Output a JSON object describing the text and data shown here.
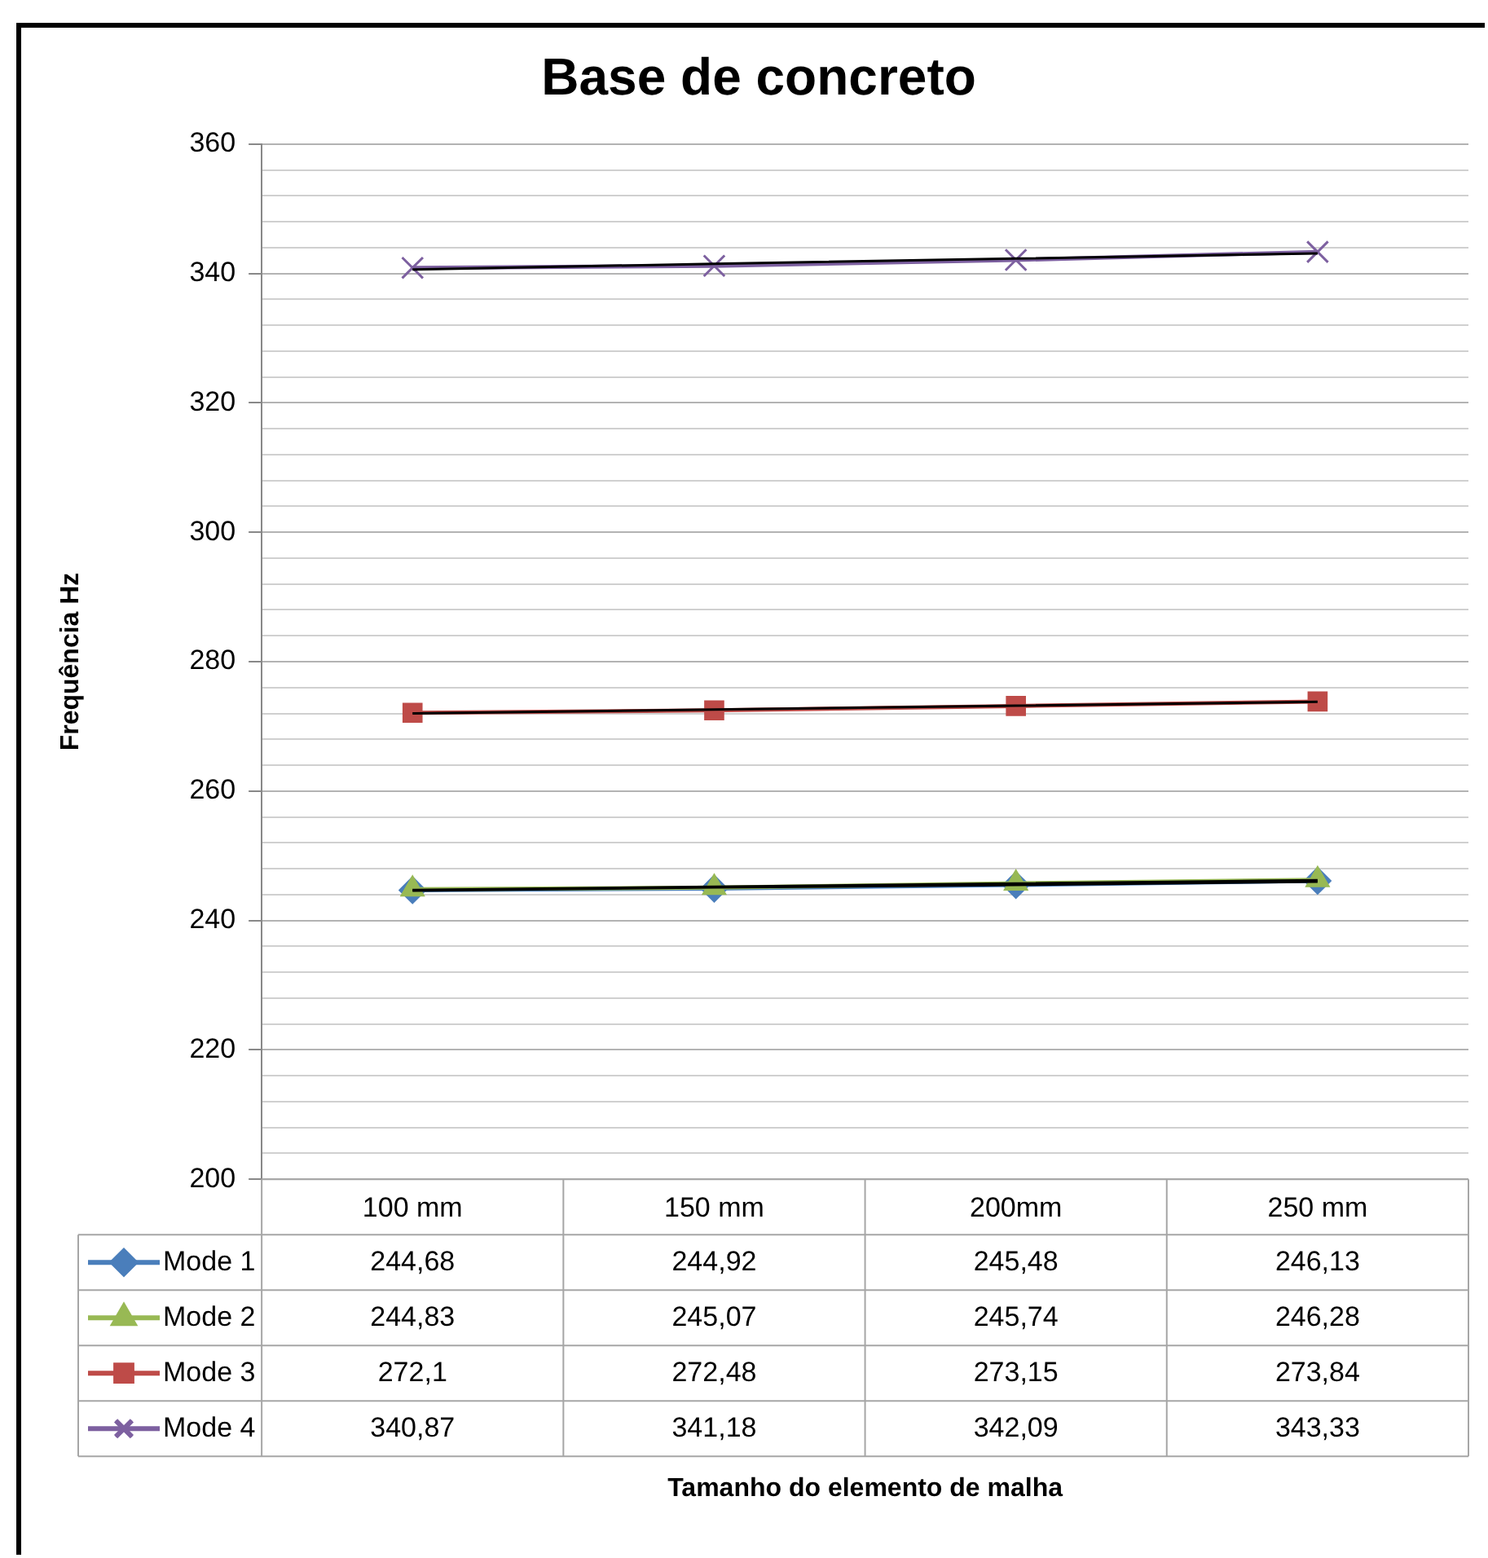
{
  "chart_data": {
    "type": "line",
    "title": "Base de concreto",
    "annotations": [
      "Tamanho do elemento de malha"
    ],
    "ylabel": "Frequência Hz",
    "categories": [
      "100 mm",
      "150 mm",
      "200mm",
      "250 mm"
    ],
    "series": [
      {
        "name": "Mode 1",
        "color": "#4a7ebb",
        "marker": "diamond",
        "values": [
          244.68,
          244.92,
          245.48,
          246.13
        ],
        "value_labels": [
          "244,68",
          "244,92",
          "245,48",
          "246,13"
        ]
      },
      {
        "name": "Mode 2",
        "color": "#98b954",
        "marker": "triangle",
        "values": [
          244.83,
          245.07,
          245.74,
          246.28
        ],
        "value_labels": [
          "244,83",
          "245,07",
          "245,74",
          "246,28"
        ]
      },
      {
        "name": "Mode 3",
        "color": "#be4b48",
        "marker": "square",
        "values": [
          272.1,
          272.48,
          273.15,
          273.84
        ],
        "value_labels": [
          "272,1",
          "272,48",
          "273,15",
          "273,84"
        ]
      },
      {
        "name": "Mode 4",
        "color": "#7d60a0",
        "marker": "cross",
        "values": [
          340.87,
          341.18,
          342.09,
          343.33
        ],
        "value_labels": [
          "340,87",
          "341,18",
          "342,09",
          "343,33"
        ]
      },
      {
        "type": "line",
        "color": "#000000",
        "marker": "none",
        "values": [
          244.6,
          245.1,
          245.5,
          246.0
        ]
      },
      {
        "type": "line",
        "color": "#000000",
        "marker": "none",
        "values": [
          244.7,
          245.2,
          245.7,
          246.2
        ]
      },
      {
        "type": "line",
        "color": "#000000",
        "marker": "none",
        "values": [
          272.0,
          272.6,
          273.2,
          273.8
        ]
      },
      {
        "type": "line",
        "color": "#000000",
        "marker": "none",
        "values": [
          340.6,
          341.5,
          342.3,
          343.1
        ]
      }
    ],
    "ylim": [
      200,
      360
    ],
    "yticks": [
      200,
      {
        "value": 204,
        "label": null
      },
      {
        "value": 208,
        "label": null
      },
      {
        "value": 212,
        "label": null
      },
      {
        "value": 216,
        "label": null
      },
      220,
      {
        "value": 224,
        "label": null
      },
      {
        "value": 228,
        "label": null
      },
      {
        "value": 232,
        "label": null
      },
      {
        "value": 236,
        "label": null
      },
      240,
      {
        "value": 244,
        "label": null
      },
      {
        "value": 248,
        "label": null
      },
      {
        "value": 252,
        "label": null
      },
      {
        "value": 256,
        "label": null
      },
      260,
      {
        "value": 264,
        "label": null
      },
      {
        "value": 268,
        "label": null
      },
      {
        "value": 272,
        "label": null
      },
      {
        "value": 276,
        "label": null
      },
      280,
      {
        "value": 284,
        "label": null
      },
      {
        "value": 288,
        "label": null
      },
      {
        "value": 292,
        "label": null
      },
      {
        "value": 296,
        "label": null
      },
      300,
      {
        "value": 304,
        "label": null
      },
      {
        "value": 308,
        "label": null
      },
      {
        "value": 312,
        "label": null
      },
      {
        "value": 316,
        "label": null
      },
      320,
      {
        "value": 324,
        "label": null
      },
      {
        "value": 328,
        "label": null
      },
      {
        "value": 332,
        "label": null
      },
      {
        "value": 336,
        "label": null
      },
      340,
      {
        "value": 344,
        "label": null
      },
      {
        "value": 348,
        "label": null
      },
      {
        "value": 352,
        "label": null
      },
      {
        "value": 356,
        "label": null
      },
      360
    ],
    "grid": "y",
    "legend": "bottom"
  }
}
